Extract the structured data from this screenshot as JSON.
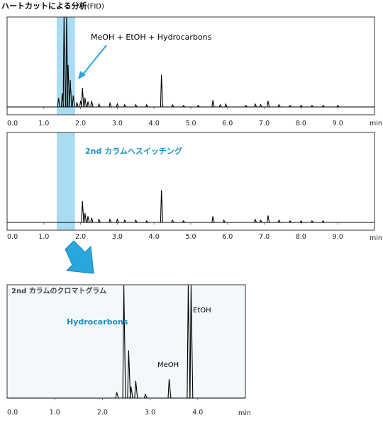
{
  "page": {
    "title_main": "ハートカットによる分析",
    "title_suffix": "(FID)"
  },
  "colors": {
    "highlight": "#a9dcf2",
    "accent": "#1a8fc4",
    "arrow": "#29a6dc",
    "inset_bg": "#f3f8fa",
    "trace": "#000000"
  },
  "chart_data": [
    {
      "id": "first_column",
      "type": "line",
      "xunit": "min",
      "xlim": [
        0,
        10
      ],
      "x_ticks": [
        "0.0",
        "1.0",
        "2.0",
        "3.0",
        "4.0",
        "5.0",
        "6.0",
        "7.0",
        "8.0",
        "9.0"
      ],
      "highlight_range": [
        1.35,
        1.85
      ],
      "annotation": "MeOH + EtOH + Hydrocarbons",
      "baseline": 0.0,
      "peaks": [
        {
          "x": 1.4,
          "y": 0.12
        },
        {
          "x": 1.5,
          "y": 0.18
        },
        {
          "x": 1.55,
          "y": 1.2
        },
        {
          "x": 1.62,
          "y": 1.2
        },
        {
          "x": 1.66,
          "y": 0.55
        },
        {
          "x": 1.72,
          "y": 0.35
        },
        {
          "x": 1.8,
          "y": 0.15
        },
        {
          "x": 1.9,
          "y": 0.06
        },
        {
          "x": 2.0,
          "y": 0.08
        },
        {
          "x": 2.05,
          "y": 0.25
        },
        {
          "x": 2.12,
          "y": 0.12
        },
        {
          "x": 2.2,
          "y": 0.07
        },
        {
          "x": 2.3,
          "y": 0.08
        },
        {
          "x": 2.5,
          "y": 0.04
        },
        {
          "x": 2.8,
          "y": 0.05
        },
        {
          "x": 3.0,
          "y": 0.04
        },
        {
          "x": 3.2,
          "y": 0.03
        },
        {
          "x": 3.5,
          "y": 0.03
        },
        {
          "x": 3.8,
          "y": 0.03
        },
        {
          "x": 4.2,
          "y": 0.42
        },
        {
          "x": 4.5,
          "y": 0.03
        },
        {
          "x": 4.8,
          "y": 0.02
        },
        {
          "x": 5.2,
          "y": 0.02
        },
        {
          "x": 5.6,
          "y": 0.09
        },
        {
          "x": 5.8,
          "y": 0.03
        },
        {
          "x": 5.95,
          "y": 0.04
        },
        {
          "x": 6.5,
          "y": 0.02
        },
        {
          "x": 6.75,
          "y": 0.04
        },
        {
          "x": 6.9,
          "y": 0.03
        },
        {
          "x": 7.1,
          "y": 0.08
        },
        {
          "x": 7.4,
          "y": 0.03
        },
        {
          "x": 7.7,
          "y": 0.02
        },
        {
          "x": 8.0,
          "y": 0.02
        },
        {
          "x": 8.3,
          "y": 0.02
        },
        {
          "x": 8.6,
          "y": 0.02
        },
        {
          "x": 9.0,
          "y": 0.02
        }
      ]
    },
    {
      "id": "second_column_switch",
      "type": "line",
      "xunit": "min",
      "xlim": [
        0,
        10
      ],
      "x_ticks": [
        "0.0",
        "1.0",
        "2.0",
        "3.0",
        "4.0",
        "5.0",
        "6.0",
        "7.0",
        "8.0",
        "9.0"
      ],
      "highlight_range": [
        1.35,
        1.85
      ],
      "annotation": "2nd カラムへスイッチング",
      "baseline": 0.0,
      "peaks": [
        {
          "x": 2.05,
          "y": 0.28
        },
        {
          "x": 2.12,
          "y": 0.12
        },
        {
          "x": 2.2,
          "y": 0.08
        },
        {
          "x": 2.3,
          "y": 0.06
        },
        {
          "x": 2.5,
          "y": 0.04
        },
        {
          "x": 2.8,
          "y": 0.04
        },
        {
          "x": 3.0,
          "y": 0.04
        },
        {
          "x": 3.2,
          "y": 0.03
        },
        {
          "x": 3.5,
          "y": 0.03
        },
        {
          "x": 3.8,
          "y": 0.02
        },
        {
          "x": 4.2,
          "y": 0.42
        },
        {
          "x": 4.5,
          "y": 0.03
        },
        {
          "x": 4.8,
          "y": 0.02
        },
        {
          "x": 5.6,
          "y": 0.08
        },
        {
          "x": 5.9,
          "y": 0.03
        },
        {
          "x": 6.75,
          "y": 0.04
        },
        {
          "x": 6.9,
          "y": 0.03
        },
        {
          "x": 7.1,
          "y": 0.09
        },
        {
          "x": 7.4,
          "y": 0.03
        },
        {
          "x": 7.7,
          "y": 0.02
        },
        {
          "x": 8.0,
          "y": 0.02
        },
        {
          "x": 8.3,
          "y": 0.02
        },
        {
          "x": 8.6,
          "y": 0.02
        }
      ]
    },
    {
      "id": "second_column_chromatogram",
      "type": "line",
      "panel_label": "2nd カラムのクロマトグラム",
      "xunit": "min",
      "xlim": [
        0,
        5
      ],
      "x_ticks": [
        "0.0",
        "1.0",
        "2.0",
        "3.0",
        "4.0"
      ],
      "labels": {
        "hydrocarbons": "Hydrocarbons",
        "meoh": "MeOH",
        "etoh": "EtOH"
      },
      "baseline": 0.0,
      "peaks": [
        {
          "x": 2.3,
          "y": 0.06
        },
        {
          "x": 2.45,
          "y": 1.2
        },
        {
          "x": 2.55,
          "y": 0.5
        },
        {
          "x": 2.6,
          "y": 0.12
        },
        {
          "x": 2.7,
          "y": 0.18
        },
        {
          "x": 2.9,
          "y": 0.04
        },
        {
          "x": 3.4,
          "y": 0.2
        },
        {
          "x": 3.8,
          "y": 1.2
        },
        {
          "x": 3.86,
          "y": 1.2
        }
      ]
    }
  ]
}
